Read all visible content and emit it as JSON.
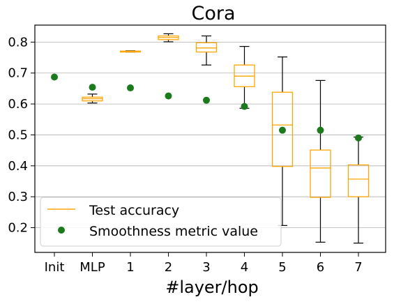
{
  "chart_data": {
    "type": "boxplot",
    "title": "Cora",
    "xlabel": "#layer/hop",
    "ylabel": "",
    "categories": [
      "Init",
      "MLP",
      "1",
      "2",
      "3",
      "4",
      "5",
      "6",
      "7"
    ],
    "ylim": [
      0.12,
      0.855
    ],
    "yticks": [
      0.2,
      0.3,
      0.4,
      0.5,
      0.6,
      0.7,
      0.8
    ],
    "ytick_labels": [
      "0.2",
      "0.3",
      "0.4",
      "0.5",
      "0.6",
      "0.7",
      "0.8"
    ],
    "grid": "horizontal",
    "legend_position": "bottom-left",
    "series": [
      {
        "name": "Test accuracy",
        "kind": "box",
        "color": "#FFA500",
        "boxes": [
          null,
          {
            "whislo": 0.603,
            "q1": 0.61,
            "med": 0.617,
            "q3": 0.622,
            "whishi": 0.632
          },
          {
            "whislo": 0.768,
            "q1": 0.768,
            "med": 0.77,
            "q3": 0.771,
            "whishi": 0.772
          },
          {
            "whislo": 0.801,
            "q1": 0.808,
            "med": 0.815,
            "q3": 0.82,
            "whishi": 0.827
          },
          {
            "whislo": 0.726,
            "q1": 0.768,
            "med": 0.781,
            "q3": 0.798,
            "whishi": 0.82
          },
          {
            "whislo": 0.586,
            "q1": 0.656,
            "med": 0.69,
            "q3": 0.726,
            "whishi": 0.786
          },
          {
            "whislo": 0.207,
            "q1": 0.398,
            "med": 0.532,
            "q3": 0.638,
            "whishi": 0.752
          },
          {
            "whislo": 0.153,
            "q1": 0.298,
            "med": 0.393,
            "q3": 0.451,
            "whishi": 0.676
          },
          {
            "whislo": 0.15,
            "q1": 0.3,
            "med": 0.357,
            "q3": 0.403,
            "whishi": 0.493
          }
        ]
      },
      {
        "name": "Smoothness metric value",
        "kind": "scatter",
        "color": "#1B7A1B",
        "values": [
          0.687,
          0.654,
          0.652,
          0.626,
          0.612,
          0.592,
          0.515,
          0.515,
          0.49
        ]
      }
    ]
  }
}
